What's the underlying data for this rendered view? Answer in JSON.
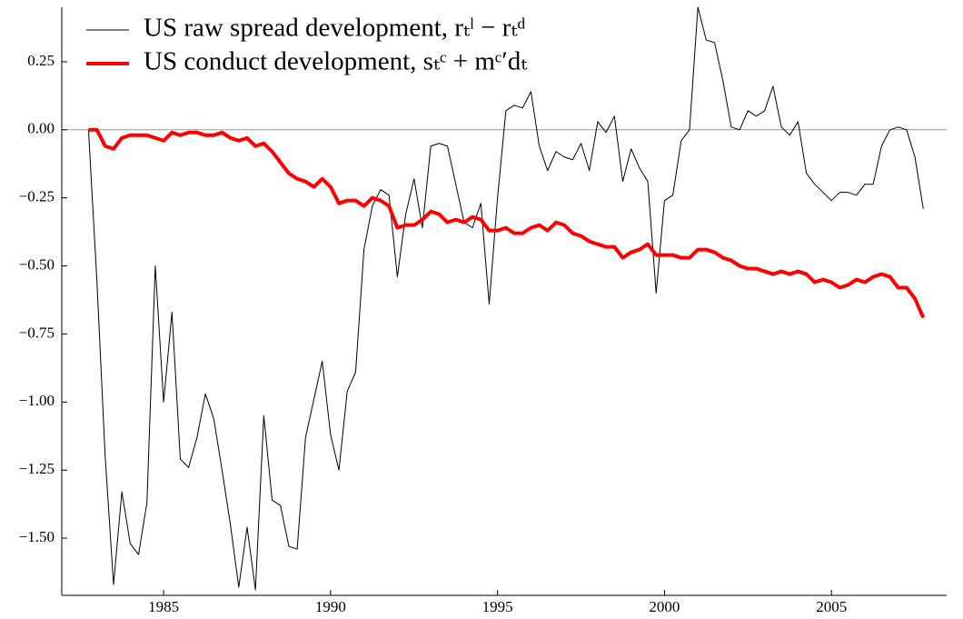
{
  "chart_data": {
    "type": "line",
    "x": [
      1982.75,
      1983,
      1983.25,
      1983.5,
      1983.75,
      1984,
      1984.25,
      1984.5,
      1984.75,
      1985,
      1985.25,
      1985.5,
      1985.75,
      1986,
      1986.25,
      1986.5,
      1986.75,
      1987,
      1987.25,
      1987.5,
      1987.75,
      1988,
      1988.25,
      1988.5,
      1988.75,
      1989,
      1989.25,
      1989.5,
      1989.75,
      1990,
      1990.25,
      1990.5,
      1990.75,
      1991,
      1991.25,
      1991.5,
      1991.75,
      1992,
      1992.25,
      1992.5,
      1992.75,
      1993,
      1993.25,
      1993.5,
      1993.75,
      1994,
      1994.25,
      1994.5,
      1994.75,
      1995,
      1995.25,
      1995.5,
      1995.75,
      1996,
      1996.25,
      1996.5,
      1996.75,
      1997,
      1997.25,
      1997.5,
      1997.75,
      1998,
      1998.25,
      1998.5,
      1998.75,
      1999,
      1999.25,
      1999.5,
      1999.75,
      2000,
      2000.25,
      2000.5,
      2000.75,
      2001,
      2001.25,
      2001.5,
      2001.75,
      2002,
      2002.25,
      2002.5,
      2002.75,
      2003,
      2003.25,
      2003.5,
      2003.75,
      2004,
      2004.25,
      2004.5,
      2004.75,
      2005,
      2005.25,
      2005.5,
      2005.75,
      2006,
      2006.25,
      2006.5,
      2006.75,
      2007,
      2007.25,
      2007.5,
      2007.75
    ],
    "series": [
      {
        "name": "US raw spread development, rₜˡ − rₜᵈ",
        "color": "#000000",
        "width": 1,
        "values": [
          0,
          -0.55,
          -1.2,
          -1.67,
          -1.33,
          -1.52,
          -1.56,
          -1.37,
          -0.5,
          -1.0,
          -0.67,
          -1.21,
          -1.24,
          -1.13,
          -0.97,
          -1.06,
          -1.25,
          -1.45,
          -1.68,
          -1.46,
          -1.69,
          -1.05,
          -1.36,
          -1.38,
          -1.53,
          -1.54,
          -1.13,
          -0.99,
          -0.85,
          -1.12,
          -1.25,
          -0.96,
          -0.89,
          -0.44,
          -0.28,
          -0.22,
          -0.24,
          -0.54,
          -0.31,
          -0.18,
          -0.36,
          -0.06,
          -0.05,
          -0.06,
          -0.2,
          -0.34,
          -0.36,
          -0.27,
          -0.64,
          -0.25,
          0.07,
          0.09,
          0.08,
          0.14,
          -0.06,
          -0.15,
          -0.08,
          -0.1,
          -0.11,
          -0.05,
          -0.15,
          0.03,
          -0.01,
          0.05,
          -0.19,
          -0.07,
          -0.14,
          -0.19,
          -0.6,
          -0.26,
          -0.24,
          -0.04,
          0,
          0.45,
          0.33,
          0.32,
          0.18,
          0.01,
          0,
          0.07,
          0.05,
          0.07,
          0.16,
          0.01,
          -0.02,
          0.03,
          -0.16,
          -0.2,
          -0.23,
          -0.26,
          -0.23,
          -0.23,
          -0.24,
          -0.2,
          -0.2,
          -0.06,
          0,
          0.01,
          0,
          -0.1,
          -0.29
        ]
      },
      {
        "name": "US conduct development, sₜᶜ + mᶜ′dₜ",
        "color": "#ff0000",
        "width": 4,
        "values": [
          0,
          0,
          -0.06,
          -0.07,
          -0.03,
          -0.02,
          -0.02,
          -0.02,
          -0.03,
          -0.04,
          -0.01,
          -0.02,
          -0.01,
          -0.01,
          -0.02,
          -0.02,
          -0.01,
          -0.03,
          -0.04,
          -0.03,
          -0.06,
          -0.05,
          -0.08,
          -0.12,
          -0.16,
          -0.18,
          -0.19,
          -0.21,
          -0.18,
          -0.21,
          -0.27,
          -0.26,
          -0.26,
          -0.28,
          -0.25,
          -0.26,
          -0.28,
          -0.36,
          -0.35,
          -0.35,
          -0.33,
          -0.3,
          -0.31,
          -0.34,
          -0.33,
          -0.34,
          -0.32,
          -0.33,
          -0.37,
          -0.37,
          -0.36,
          -0.38,
          -0.38,
          -0.36,
          -0.35,
          -0.37,
          -0.34,
          -0.35,
          -0.38,
          -0.39,
          -0.41,
          -0.42,
          -0.43,
          -0.43,
          -0.47,
          -0.45,
          -0.44,
          -0.42,
          -0.46,
          -0.46,
          -0.46,
          -0.47,
          -0.47,
          -0.44,
          -0.44,
          -0.45,
          -0.47,
          -0.48,
          -0.5,
          -0.51,
          -0.51,
          -0.52,
          -0.53,
          -0.52,
          -0.53,
          -0.52,
          -0.53,
          -0.56,
          -0.55,
          -0.56,
          -0.58,
          -0.57,
          -0.55,
          -0.56,
          -0.54,
          -0.53,
          -0.54,
          -0.58,
          -0.58,
          -0.62,
          -0.69
        ]
      }
    ],
    "xlim": [
      1981.95,
      2008.45
    ],
    "xticks": [
      1985,
      1990,
      1995,
      2000,
      2005
    ],
    "ylim": [
      -1.71,
      0.45
    ],
    "yticks": [
      0.25,
      {
        "value": 0,
        "label": "0.00"
      },
      {
        "value": -0.25,
        "label": "−0.25"
      },
      {
        "value": -0.5,
        "label": "−0.50"
      },
      {
        "value": -0.75,
        "label": "−0.75"
      },
      {
        "value": -1,
        "label": "−1.00"
      },
      {
        "value": -1.25,
        "label": "−1.25"
      },
      {
        "value": -1.5,
        "label": "−1.50"
      }
    ],
    "zero_line": true,
    "legend": "upper left"
  }
}
